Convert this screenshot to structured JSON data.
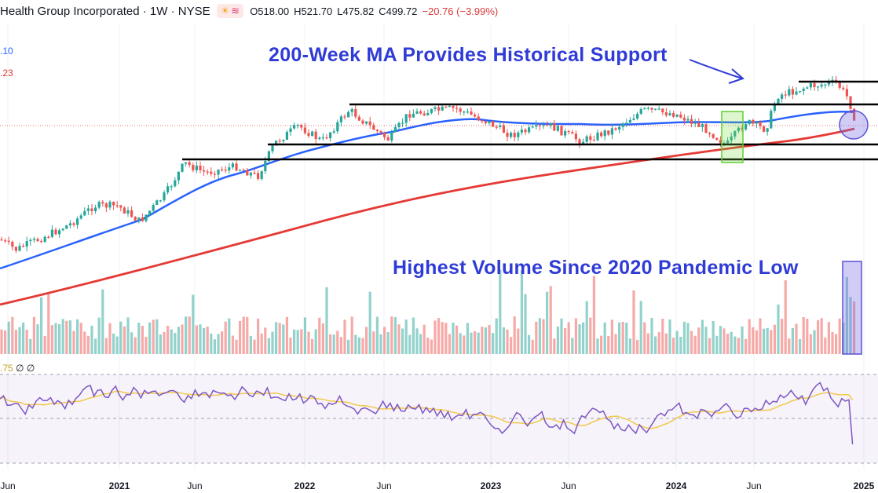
{
  "header": {
    "title": "Health Group Incorporated · 1W · NYSE",
    "open": "O518.00",
    "high": "H521.70",
    "low": "L475.82",
    "close": "C499.72",
    "change": "−20.76 (−3.99%)"
  },
  "ma_labels": {
    "ma_fast": ".10",
    "ma_slow": ".23"
  },
  "rsi_label": {
    "value": ".75",
    "n1": "∅",
    "n2": "∅"
  },
  "annotations": {
    "top": "200-Week MA Provides Historical Support",
    "volume": "Highest Volume Since 2020 Pandemic Low"
  },
  "x_ticks": [
    "Jun",
    "2021",
    "Jun",
    "2022",
    "Jun",
    "2023",
    "Jun",
    "2024",
    "Jun",
    "2025"
  ],
  "colors": {
    "up": "#26a69a",
    "down": "#ef5350",
    "ma_fast": "#2962ff",
    "ma_slow": "#e53935",
    "rsi": "#7e57c2",
    "rsi_ma": "#f2c94c",
    "annotation": "#2f3bd6"
  },
  "chart_data": {
    "type": "candlestick",
    "interval": "1W",
    "x_range": [
      "2020-06",
      "2025-01"
    ],
    "y_range_approx": [
      280,
      630
    ],
    "last_candle": {
      "open": 518.0,
      "high": 521.7,
      "low": 475.82,
      "close": 499.72,
      "change": -20.76,
      "change_pct": -3.99
    },
    "support_resistance_levels": [
      {
        "label": "upper resistance",
        "approx": 625
      },
      {
        "label": "range top",
        "approx": 590
      },
      {
        "label": "range bottom",
        "approx": 495
      },
      {
        "label": "lower support",
        "approx": 460
      }
    ],
    "moving_averages": [
      "50-week (blue)",
      "200-week (red)"
    ],
    "panels": [
      "price",
      "volume",
      "RSI"
    ]
  }
}
